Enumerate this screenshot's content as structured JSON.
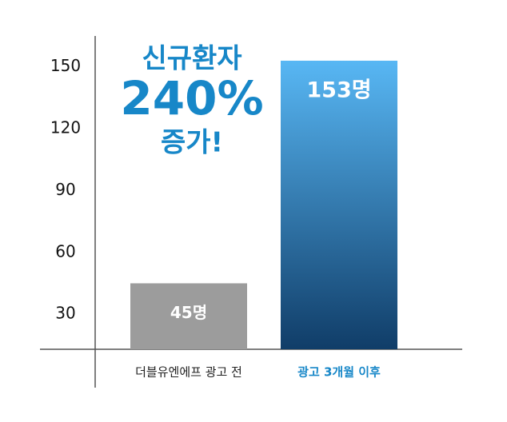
{
  "chart_data": {
    "type": "bar",
    "annotations": [
      "신규환자",
      "240%",
      "증가!"
    ],
    "annotation_color": "#1787c8",
    "categories": [
      "더블유엔에프 광고 전",
      "광고 3개월 이후"
    ],
    "category_label_colors": [
      "#222222",
      "#1787c8"
    ],
    "values": [
      45,
      153
    ],
    "value_labels": [
      "45명",
      "153명"
    ],
    "bar_colors": [
      {
        "top": "#9c9c9c",
        "bottom": "#9c9c9c"
      },
      {
        "top": "#58b7f4",
        "bottom": "#103d68"
      }
    ],
    "ylim": [
      13,
      165
    ],
    "yticks": [
      30,
      60,
      90,
      120,
      150
    ]
  }
}
